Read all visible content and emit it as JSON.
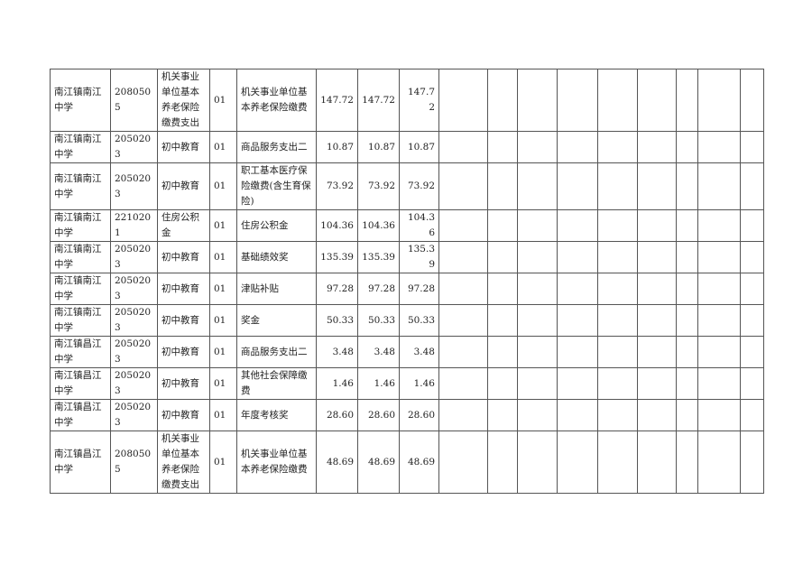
{
  "table": {
    "rows": [
      {
        "unit": "南江镇南江中学",
        "code": "2080505",
        "category": "机关事业单位基本养老保险缴费支出",
        "sub": "01",
        "item": "机关事业单位基本养老保险缴费",
        "v1": "147.72",
        "v2": "147.72",
        "v3": "147.72"
      },
      {
        "unit": "南江镇南江中学",
        "code": "2050203",
        "category": "初中教育",
        "sub": "01",
        "item": "商品服务支出二",
        "v1": "10.87",
        "v2": "10.87",
        "v3": "10.87"
      },
      {
        "unit": "南江镇南江中学",
        "code": "2050203",
        "category": "初中教育",
        "sub": "01",
        "item": "职工基本医疗保险缴费(含生育保险)",
        "v1": "73.92",
        "v2": "73.92",
        "v3": "73.92"
      },
      {
        "unit": "南江镇南江中学",
        "code": "2210201",
        "category": "住房公积金",
        "sub": "01",
        "item": "住房公积金",
        "v1": "104.36",
        "v2": "104.36",
        "v3": "104.36"
      },
      {
        "unit": "南江镇南江中学",
        "code": "2050203",
        "category": "初中教育",
        "sub": "01",
        "item": "基础绩效奖",
        "v1": "135.39",
        "v2": "135.39",
        "v3": "135.39"
      },
      {
        "unit": "南江镇南江中学",
        "code": "2050203",
        "category": "初中教育",
        "sub": "01",
        "item": "津贴补贴",
        "v1": "97.28",
        "v2": "97.28",
        "v3": "97.28"
      },
      {
        "unit": "南江镇南江中学",
        "code": "2050203",
        "category": "初中教育",
        "sub": "01",
        "item": "奖金",
        "v1": "50.33",
        "v2": "50.33",
        "v3": "50.33"
      },
      {
        "unit": "南江镇昌江中学",
        "code": "2050203",
        "category": "初中教育",
        "sub": "01",
        "item": "商品服务支出二",
        "v1": "3.48",
        "v2": "3.48",
        "v3": "3.48"
      },
      {
        "unit": "南江镇昌江中学",
        "code": "2050203",
        "category": "初中教育",
        "sub": "01",
        "item": "其他社会保障缴费",
        "v1": "1.46",
        "v2": "1.46",
        "v3": "1.46"
      },
      {
        "unit": "南江镇昌江中学",
        "code": "2050203",
        "category": "初中教育",
        "sub": "01",
        "item": "年度考核奖",
        "v1": "28.60",
        "v2": "28.60",
        "v3": "28.60"
      },
      {
        "unit": "南江镇昌江中学",
        "code": "2080505",
        "category": "机关事业单位基本养老保险缴费支出",
        "sub": "01",
        "item": "机关事业单位基本养老保险缴费",
        "v1": "48.69",
        "v2": "48.69",
        "v3": "48.69"
      }
    ]
  }
}
